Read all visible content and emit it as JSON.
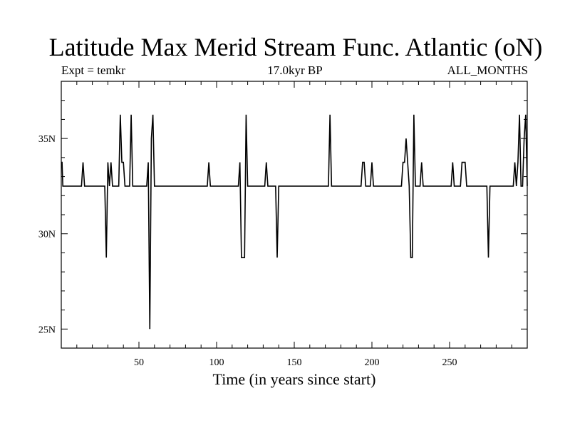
{
  "header": {
    "title": "Latitude Max Merid Stream Func. Atlantic (oN)",
    "left_label": "Expt = temkr",
    "center_label": "17.0kyr BP",
    "right_label": "ALL_MONTHS"
  },
  "colors": {
    "line": "#000000",
    "background": "#ffffff",
    "frame": "#000000"
  },
  "chart_data": {
    "type": "line",
    "title": "Latitude Max Merid Stream Func. Atlantic (oN)",
    "xlabel": "Time (in years since start)",
    "ylabel": "",
    "xlim": [
      0,
      300
    ],
    "ylim": [
      24,
      38
    ],
    "xticks": [
      50,
      100,
      150,
      200,
      250
    ],
    "xtick_labels": [
      "50",
      "100",
      "150",
      "200",
      "250"
    ],
    "yticks": [
      25,
      30,
      35
    ],
    "ytick_labels": [
      "25N",
      "30N",
      "35N"
    ],
    "grid": false,
    "series": [
      {
        "x": [
          0,
          0.5,
          1,
          2,
          3,
          13,
          14,
          15,
          16,
          28,
          29,
          30,
          31,
          32,
          33,
          34,
          37,
          38,
          39,
          40,
          41,
          44,
          45,
          46,
          47,
          55,
          56,
          57,
          58,
          59,
          60,
          94,
          95,
          96,
          114,
          115,
          116,
          117,
          118,
          119,
          120,
          131,
          132,
          133,
          137,
          138,
          139,
          140,
          172,
          173,
          174,
          193,
          194,
          195,
          196,
          199,
          200,
          201,
          219,
          220,
          221,
          222,
          223,
          224,
          225,
          226,
          227,
          228,
          229,
          231,
          232,
          233,
          251,
          252,
          253,
          257,
          258,
          259,
          260,
          261,
          274,
          275,
          276,
          291,
          292,
          293,
          294,
          295,
          296,
          297,
          298,
          299,
          300
        ],
        "y": [
          33.75,
          33.75,
          32.5,
          32.5,
          32.5,
          32.5,
          33.75,
          32.5,
          32.5,
          32.5,
          28.75,
          33.75,
          32.5,
          33.75,
          32.5,
          32.5,
          32.5,
          36.25,
          33.75,
          33.75,
          32.5,
          32.5,
          36.25,
          32.5,
          32.5,
          32.5,
          33.75,
          25,
          35,
          36.25,
          32.5,
          32.5,
          33.75,
          32.5,
          32.5,
          33.75,
          28.75,
          28.75,
          28.75,
          36.25,
          32.5,
          32.5,
          33.75,
          32.5,
          32.5,
          32.5,
          28.75,
          32.5,
          32.5,
          36.25,
          32.5,
          32.5,
          33.75,
          33.75,
          32.5,
          32.5,
          33.75,
          32.5,
          32.5,
          33.75,
          33.75,
          35,
          33.75,
          32.5,
          28.75,
          28.75,
          36.25,
          32.5,
          32.5,
          32.5,
          33.75,
          32.5,
          32.5,
          33.75,
          32.5,
          32.5,
          33.75,
          33.75,
          33.75,
          32.5,
          32.5,
          28.75,
          32.5,
          32.5,
          33.75,
          32.5,
          33.75,
          36.25,
          32.5,
          32.5,
          35,
          36.25,
          32.5
        ]
      }
    ]
  }
}
